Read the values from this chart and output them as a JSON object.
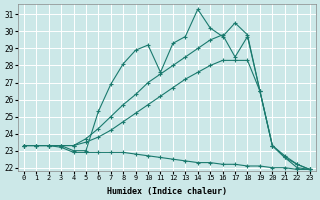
{
  "xlabel": "Humidex (Indice chaleur)",
  "bg_color": "#cce8e8",
  "grid_color": "#ffffff",
  "line_color": "#1a7a6e",
  "xlim": [
    -0.5,
    23.5
  ],
  "ylim": [
    21.8,
    31.6
  ],
  "yticks": [
    22,
    23,
    24,
    25,
    26,
    27,
    28,
    29,
    30,
    31
  ],
  "xticks": [
    0,
    1,
    2,
    3,
    4,
    5,
    6,
    7,
    8,
    9,
    10,
    11,
    12,
    13,
    14,
    15,
    16,
    17,
    18,
    19,
    20,
    21,
    22,
    23
  ],
  "series": [
    {
      "x": [
        0,
        1,
        2,
        3,
        4,
        5,
        6,
        7,
        8,
        9,
        10,
        11,
        12,
        13,
        14,
        15,
        16,
        17,
        18,
        19,
        20,
        21,
        22,
        23
      ],
      "y": [
        23.3,
        23.3,
        23.3,
        23.2,
        22.9,
        22.9,
        22.9,
        22.9,
        22.9,
        22.8,
        22.7,
        22.6,
        22.5,
        22.4,
        22.3,
        22.3,
        22.2,
        22.2,
        22.1,
        22.1,
        22.0,
        22.0,
        21.9,
        21.9
      ]
    },
    {
      "x": [
        0,
        1,
        2,
        3,
        4,
        5,
        6,
        7,
        8,
        9,
        10,
        11,
        12,
        13,
        14,
        15,
        16,
        17,
        18,
        19,
        20,
        21,
        22,
        23
      ],
      "y": [
        23.3,
        23.3,
        23.3,
        23.3,
        23.3,
        23.5,
        23.8,
        24.2,
        24.7,
        25.2,
        25.7,
        26.2,
        26.7,
        27.2,
        27.6,
        28.0,
        28.3,
        28.3,
        28.3,
        26.5,
        23.3,
        22.6,
        22.0,
        21.9
      ]
    },
    {
      "x": [
        0,
        1,
        2,
        3,
        4,
        5,
        6,
        7,
        8,
        9,
        10,
        11,
        12,
        13,
        14,
        15,
        16,
        17,
        18,
        19,
        20,
        21,
        22,
        23
      ],
      "y": [
        23.3,
        23.3,
        23.3,
        23.3,
        23.3,
        23.7,
        24.3,
        25.0,
        25.7,
        26.3,
        27.0,
        27.5,
        28.0,
        28.5,
        29.0,
        29.5,
        29.8,
        28.5,
        29.7,
        26.5,
        23.3,
        22.7,
        22.2,
        21.9
      ]
    },
    {
      "x": [
        0,
        1,
        2,
        3,
        4,
        5,
        6,
        7,
        8,
        9,
        10,
        11,
        12,
        13,
        14,
        15,
        16,
        17,
        18,
        19,
        20,
        21,
        22,
        23
      ],
      "y": [
        23.3,
        23.3,
        23.3,
        23.3,
        23.0,
        23.0,
        25.3,
        26.9,
        28.1,
        28.9,
        29.2,
        27.6,
        29.3,
        29.7,
        31.3,
        30.2,
        29.7,
        30.5,
        29.8,
        26.5,
        23.3,
        22.6,
        22.2,
        21.9
      ]
    }
  ]
}
